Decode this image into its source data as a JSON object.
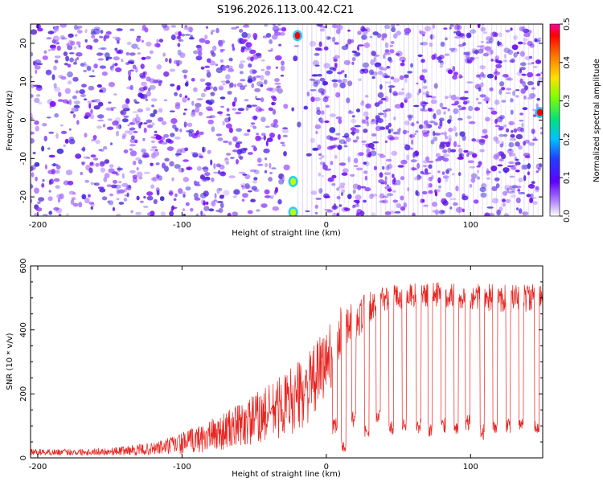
{
  "figure": {
    "title": "S196.2026.113.00.42.C21"
  },
  "chart_data": [
    {
      "type": "heatmap",
      "xlabel": "Height of straight line (km)",
      "ylabel": "Frequency (Hz)",
      "xlim": [
        -205,
        150
      ],
      "ylim": [
        -25,
        25
      ],
      "x_ticks": [
        -200,
        -100,
        0,
        100
      ],
      "y_ticks": [
        -20,
        -10,
        0,
        10,
        20
      ],
      "colorbar": {
        "label": "Normalized spectral amplitude",
        "range": [
          0,
          0.5
        ],
        "ticks": [
          0.0,
          0.1,
          0.2,
          0.3,
          0.4,
          0.5
        ],
        "colormap": [
          "#ffffff",
          "#7a00ff",
          "#2040ff",
          "#00c8ff",
          "#00e060",
          "#c0ff00",
          "#ffe000",
          "#ff7000",
          "#ff0000",
          "#ff00a0"
        ]
      },
      "bright_features": [
        {
          "x": -20,
          "y": 22,
          "value": 0.45,
          "note": "red spot"
        },
        {
          "x": -23,
          "y": -24,
          "value": 0.3,
          "note": "green spot"
        },
        {
          "x": -23,
          "y": -16,
          "value": 0.25,
          "note": "green spot"
        },
        {
          "x": 148,
          "y": 2,
          "value": 0.45,
          "note": "red spot"
        }
      ]
    },
    {
      "type": "line",
      "xlabel": "Height of straight line (km)",
      "ylabel": "SNR (10 * v/v)",
      "xlim": [
        -205,
        150
      ],
      "ylim": [
        0,
        600
      ],
      "x_ticks": [
        -200,
        -100,
        0,
        100
      ],
      "y_ticks": [
        0,
        200,
        400,
        600
      ],
      "series": [
        {
          "color": "#e8231f",
          "envelope": {
            "x": [
              -205,
              -180,
              -150,
              -120,
              -100,
              -80,
              -60,
              -40,
              -20,
              -10,
              0,
              10,
              20,
              30,
              40,
              60,
              80,
              100,
              120,
              150
            ],
            "mean": [
              18,
              18,
              20,
              28,
              45,
              70,
              100,
              140,
              190,
              230,
              300,
              380,
              430,
              470,
              500,
              510,
              510,
              505,
              500,
              500
            ],
            "spread": [
              10,
              10,
              12,
              20,
              35,
              50,
              70,
              90,
              110,
              110,
              110,
              100,
              70,
              50,
              40,
              40,
              40,
              40,
              45,
              45
            ]
          },
          "dips": [
            {
              "x": 6,
              "value": 100
            },
            {
              "x": 12,
              "value": 40
            },
            {
              "x": 19,
              "value": 120
            },
            {
              "x": 28,
              "value": 90
            },
            {
              "x": 36,
              "value": 130
            },
            {
              "x": 45,
              "value": 95
            },
            {
              "x": 54,
              "value": 110
            },
            {
              "x": 64,
              "value": 100
            },
            {
              "x": 72,
              "value": 90
            },
            {
              "x": 81,
              "value": 100
            },
            {
              "x": 90,
              "value": 95
            },
            {
              "x": 98,
              "value": 110
            },
            {
              "x": 108,
              "value": 80
            },
            {
              "x": 117,
              "value": 90
            },
            {
              "x": 126,
              "value": 100
            },
            {
              "x": 135,
              "value": 110
            },
            {
              "x": 146,
              "value": 95
            }
          ]
        }
      ]
    }
  ]
}
